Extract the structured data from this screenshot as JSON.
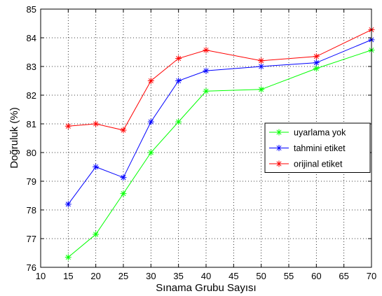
{
  "chart_data": {
    "type": "line",
    "xlabel": "Sınama Grubu Sayısı",
    "ylabel": "Doğruluk (%)",
    "xlim": [
      10,
      70
    ],
    "ylim": [
      76,
      85
    ],
    "xticks": [
      10,
      15,
      20,
      25,
      30,
      35,
      40,
      45,
      50,
      55,
      60,
      65,
      70
    ],
    "yticks": [
      76,
      77,
      78,
      79,
      80,
      81,
      82,
      83,
      84,
      85
    ],
    "grid": true,
    "grid_style": "dotted",
    "legend_position": "right",
    "marker": "asterisk",
    "x": [
      15,
      20,
      25,
      30,
      35,
      40,
      50,
      60,
      70
    ],
    "series": [
      {
        "name": "uyarlama yok",
        "color": "#00ff00",
        "values": [
          76.35,
          77.15,
          78.57,
          80.0,
          81.07,
          82.14,
          82.2,
          82.93,
          83.57
        ]
      },
      {
        "name": "tahmini etiket",
        "color": "#0000ff",
        "values": [
          78.2,
          79.5,
          79.13,
          81.07,
          82.5,
          82.85,
          83.0,
          83.13,
          83.93
        ]
      },
      {
        "name": "orijinal etiket",
        "color": "#ff0000",
        "values": [
          80.92,
          81.0,
          80.78,
          82.5,
          83.28,
          83.57,
          83.2,
          83.35,
          84.28
        ]
      }
    ]
  }
}
